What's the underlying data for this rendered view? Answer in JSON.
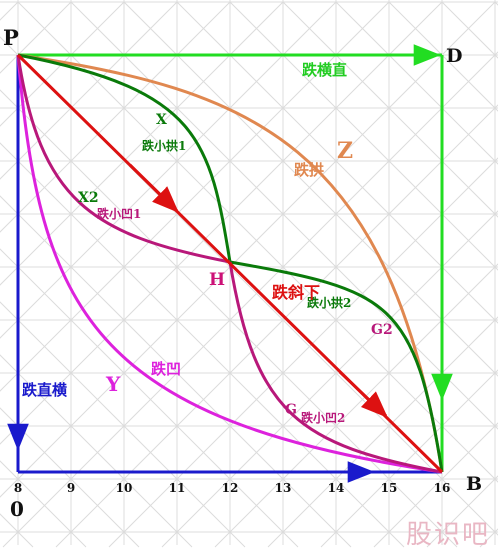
{
  "points": {
    "P": "P",
    "D": "D",
    "B": "B",
    "O": "0",
    "H": "H"
  },
  "paths": {
    "fall_horizontal": {
      "label": "跌横直",
      "color": "#22dd22"
    },
    "fall_arch": {
      "label": "跌拱",
      "marker": "Z",
      "color": "#e08850"
    },
    "fall_small_arch_1": {
      "label": "跌小拱1",
      "marker": "X",
      "color": "#0a7a0a"
    },
    "fall_small_arch_2": {
      "label": "跌小拱2",
      "marker": "G2",
      "color": "#0a7a0a"
    },
    "fall_diagonal": {
      "label": "跌斜下",
      "color": "#dd1111"
    },
    "fall_small_concave_1": {
      "label": "跌小凹1",
      "marker": "X2",
      "color": "#b8187a"
    },
    "fall_small_concave_2": {
      "label": "跌小凹2",
      "marker": "G",
      "color": "#b8187a"
    },
    "fall_concave": {
      "label": "跌凹",
      "marker": "Y",
      "color": "#dd22dd"
    },
    "fall_vertical": {
      "label": "跌直横",
      "color": "#1a1acc"
    }
  },
  "x_ticks": [
    "8",
    "9",
    "10",
    "11",
    "12",
    "13",
    "14",
    "15",
    "16"
  ],
  "watermark": "股识吧"
}
